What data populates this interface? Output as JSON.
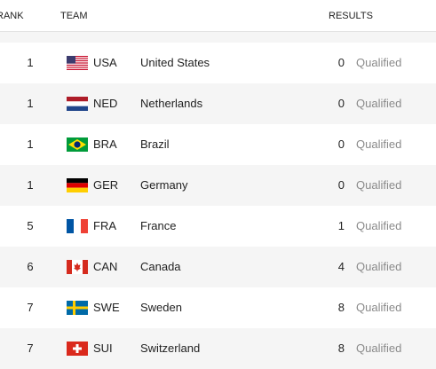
{
  "table": {
    "columns": [
      "RANK",
      "TEAM",
      "RESULTS"
    ],
    "rows": [
      {
        "rank": 1,
        "code": "USA",
        "name": "United States",
        "result": 0,
        "status": "Qualified"
      },
      {
        "rank": 1,
        "code": "NED",
        "name": "Netherlands",
        "result": 0,
        "status": "Qualified"
      },
      {
        "rank": 1,
        "code": "BRA",
        "name": "Brazil",
        "result": 0,
        "status": "Qualified"
      },
      {
        "rank": 1,
        "code": "GER",
        "name": "Germany",
        "result": 0,
        "status": "Qualified"
      },
      {
        "rank": 5,
        "code": "FRA",
        "name": "France",
        "result": 1,
        "status": "Qualified"
      },
      {
        "rank": 6,
        "code": "CAN",
        "name": "Canada",
        "result": 4,
        "status": "Qualified"
      },
      {
        "rank": 7,
        "code": "SWE",
        "name": "Sweden",
        "result": 8,
        "status": "Qualified"
      },
      {
        "rank": 7,
        "code": "SUI",
        "name": "Switzerland",
        "result": 8,
        "status": "Qualified"
      }
    ]
  }
}
